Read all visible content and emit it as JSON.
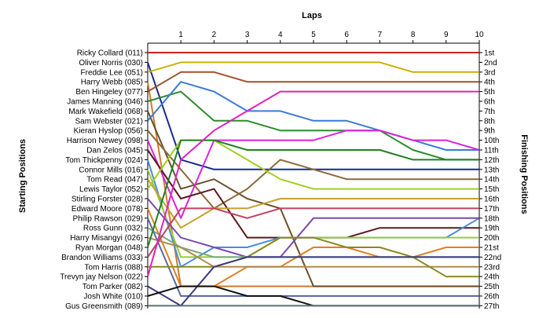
{
  "chart_data": {
    "type": "line",
    "title": "",
    "xlabel": "Laps",
    "ylabel_left": "Starting Positions",
    "ylabel_right": "Finishing Positions",
    "x": [
      0,
      1,
      2,
      3,
      4,
      5,
      6,
      7,
      8,
      9,
      10
    ],
    "x_tick_labels": [
      "1",
      "2",
      "3",
      "4",
      "5",
      "6",
      "7",
      "8",
      "9",
      "10"
    ],
    "ylim": [
      1,
      27
    ],
    "y_inverted": true,
    "grid": false,
    "finish_labels": [
      "1st",
      "2nd",
      "3rd",
      "4th",
      "5th",
      "6th",
      "7th",
      "8th",
      "9th",
      "10th",
      "11th",
      "12th",
      "13th",
      "14th",
      "15th",
      "16th",
      "17th",
      "18th",
      "19th",
      "20th",
      "21st",
      "22nd",
      "23rd",
      "24th",
      "25th",
      "26th",
      "27th"
    ],
    "series": [
      {
        "name": "Ricky Collard (011)",
        "color": "#cc2222",
        "values": [
          1,
          1,
          1,
          1,
          1,
          1,
          1,
          1,
          1,
          1,
          1
        ]
      },
      {
        "name": "Oliver Norris (030)",
        "color": "#1a2a8c",
        "values": [
          2,
          12,
          13,
          13,
          13,
          13,
          13,
          13,
          13,
          13,
          13
        ]
      },
      {
        "name": "Freddie Lee (051)",
        "color": "#c8b400",
        "values": [
          3,
          2,
          2,
          2,
          2,
          2,
          2,
          2,
          3,
          3,
          3
        ]
      },
      {
        "name": "Harry Webb (085)",
        "color": "#d07a30",
        "values": [
          4,
          25,
          25,
          25,
          25,
          25,
          25,
          25,
          25,
          25,
          25
        ]
      },
      {
        "name": "Ben Hingeley (077)",
        "color": "#a0522d",
        "values": [
          5,
          3,
          3,
          4,
          4,
          4,
          4,
          4,
          4,
          4,
          4
        ]
      },
      {
        "name": "James Manning (046)",
        "color": "#2a8c2a",
        "values": [
          6,
          5,
          8,
          8,
          9,
          9,
          9,
          9,
          11,
          12,
          12
        ]
      },
      {
        "name": "Mark Wakefield (068)",
        "color": "#6b4f2a",
        "values": [
          7,
          15,
          14,
          16,
          17,
          25,
          25,
          25,
          25,
          25,
          25
        ]
      },
      {
        "name": "Sam Webster (021)",
        "color": "#3a7ad8",
        "values": [
          8,
          4,
          5,
          7,
          7,
          8,
          8,
          9,
          10,
          11,
          11
        ]
      },
      {
        "name": "Kieran Hyslop (056)",
        "color": "#8b6b3a",
        "values": [
          9,
          13,
          17,
          15,
          12,
          13,
          14,
          14,
          14,
          14,
          14
        ]
      },
      {
        "name": "Harrison Newey (098)",
        "color": "#dd22dd",
        "values": [
          10,
          18,
          10,
          10,
          10,
          10,
          9,
          9,
          10,
          10,
          11
        ]
      },
      {
        "name": "Dan Zelos (045)",
        "color": "#5a1a1a",
        "values": [
          11,
          16,
          15,
          20,
          20,
          20,
          20,
          19,
          19,
          19,
          19
        ]
      },
      {
        "name": "Tom Thickpenny (024)",
        "color": "#4a8ce0",
        "values": [
          12,
          23,
          21,
          21,
          20,
          20,
          20,
          20,
          20,
          20,
          18
        ]
      },
      {
        "name": "Connor Mills (016)",
        "color": "#9acd32",
        "values": [
          13,
          22,
          22,
          22,
          20,
          20,
          20,
          20,
          20,
          20,
          20
        ]
      },
      {
        "name": "Tom Read (047)",
        "color": "#c8a02a",
        "values": [
          14,
          19,
          17,
          17,
          16,
          16,
          16,
          16,
          16,
          16,
          16
        ]
      },
      {
        "name": "Lewis Taylor (052)",
        "color": "#a0d020",
        "values": [
          15,
          10,
          10,
          12,
          14,
          15,
          15,
          15,
          15,
          15,
          15
        ]
      },
      {
        "name": "Stirling Forster (028)",
        "color": "#7a4ab0",
        "values": [
          16,
          20,
          21,
          22,
          22,
          18,
          18,
          18,
          18,
          18,
          18
        ]
      },
      {
        "name": "Edward Moore (078)",
        "color": "#e08020",
        "values": [
          17,
          25,
          25,
          23,
          23,
          21,
          21,
          22,
          22,
          21,
          21
        ]
      },
      {
        "name": "Philip Rawson (029)",
        "color": "#5a6aa0",
        "values": [
          18,
          26,
          26,
          26,
          26,
          26,
          26,
          26,
          26,
          26,
          26
        ]
      },
      {
        "name": "Ross Gunn (032)",
        "color": "#7aa87a",
        "values": [
          19,
          21,
          22,
          22,
          22,
          22,
          22,
          22,
          22,
          22,
          22
        ]
      },
      {
        "name": "Harry Misangyi (026)",
        "color": "#b08a50",
        "values": [
          20,
          21,
          23,
          23,
          23,
          23,
          23,
          23,
          23,
          23,
          23
        ]
      },
      {
        "name": "Ryan Morgan (048)",
        "color": "#208020",
        "values": [
          21,
          10,
          10,
          11,
          11,
          11,
          11,
          11,
          12,
          12,
          12
        ]
      },
      {
        "name": "Brandon Williams (033)",
        "color": "#c04060",
        "values": [
          22,
          17,
          17,
          18,
          17,
          17,
          17,
          17,
          17,
          17,
          17
        ]
      },
      {
        "name": "Tom Harris (088)",
        "color": "#8a8a20",
        "values": [
          23,
          23,
          23,
          22,
          20,
          20,
          21,
          21,
          22,
          24,
          24
        ]
      },
      {
        "name": "Trevyn jay Nelson (022)",
        "color": "#e020c0",
        "values": [
          24,
          12,
          9,
          7,
          5,
          5,
          5,
          5,
          5,
          5,
          5
        ]
      },
      {
        "name": "Tom Parker (082)",
        "color": "#3a3a80",
        "values": [
          25,
          27,
          23,
          22,
          22,
          22,
          22,
          22,
          22,
          22,
          22
        ]
      },
      {
        "name": "Josh White (010)",
        "color": "#111111",
        "values": [
          26,
          25,
          25,
          26,
          26,
          27,
          27,
          27,
          27,
          27,
          27
        ]
      },
      {
        "name": "Gus Greensmith (089)",
        "color": "#607070",
        "values": [
          27,
          27,
          27,
          27,
          27,
          27,
          27,
          27,
          27,
          27,
          27
        ]
      }
    ]
  }
}
